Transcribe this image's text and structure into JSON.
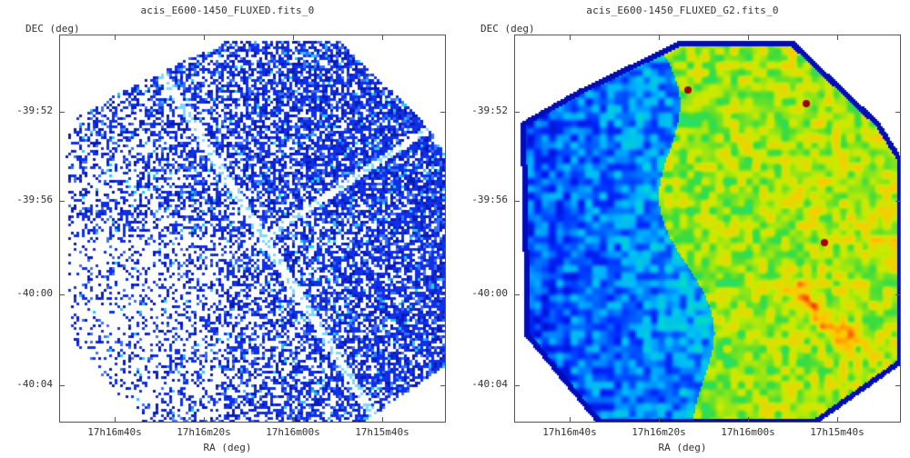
{
  "panels": [
    {
      "title": "acis_E600-1450_FLUXED.fits_0",
      "ylabel": "DEC (deg)",
      "xlabel": "RA (deg)",
      "dec_ticks": [
        "-39:52",
        "-39:56",
        "-40:00",
        "-40:04"
      ],
      "ra_ticks": [
        "17h16m40s",
        "17h16m20s",
        "17h16m00s",
        "17h15m40s"
      ],
      "image": "counts map, blue pixels with chip gaps"
    },
    {
      "title": "acis_E600-1450_FLUXED_G2.fits_0",
      "ylabel": "DEC (deg)",
      "xlabel": "RA (deg)",
      "dec_ticks": [
        "-39:52",
        "-39:56",
        "-40:00",
        "-40:04"
      ],
      "ra_ticks": [
        "17h16m40s",
        "17h16m20s",
        "17h16m00s",
        "17h15m40s"
      ],
      "image": "smoothed map, blue-green-yellow-red colormap"
    }
  ]
}
